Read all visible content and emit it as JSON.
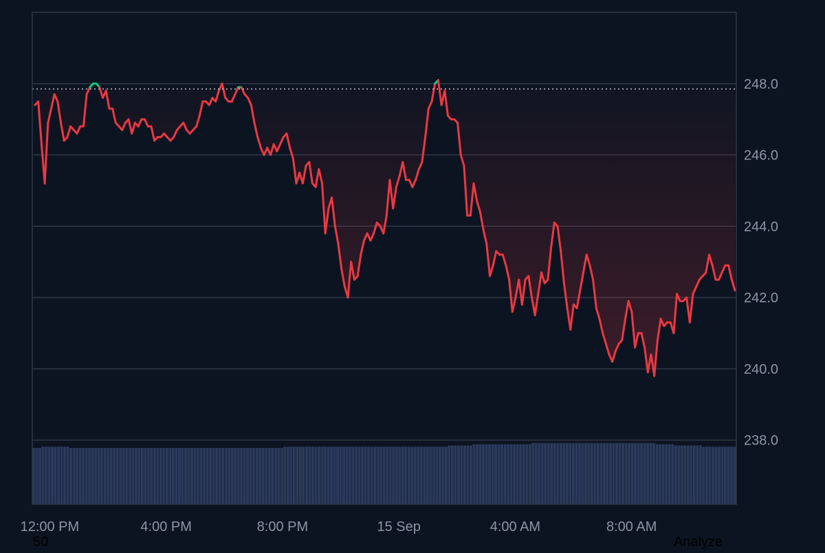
{
  "colors": {
    "background": "#0d1421",
    "line_down": "#ea3943",
    "line_up": "#16c784",
    "grid": "#2f3747",
    "axis_text": "#8c95a6",
    "volume": "#2c3a5c",
    "reference_line": "#c4cbd6"
  },
  "overlay": {
    "bottom_left": "50",
    "bottom_right": "Analyze"
  },
  "chart_data": {
    "type": "line",
    "title": "",
    "xlabel": "",
    "ylabel": "",
    "ylim": [
      236.2,
      250.0
    ],
    "y_ticks": [
      238.0,
      240.0,
      242.0,
      244.0,
      246.0,
      248.0
    ],
    "y_tick_labels": [
      "238.0",
      "240.0",
      "242.0",
      "244.0",
      "246.0",
      "248.0"
    ],
    "x_ticks": [
      {
        "label": "12:00 PM",
        "hours": 0.6
      },
      {
        "label": "4:00 PM",
        "hours": 4.6
      },
      {
        "label": "8:00 PM",
        "hours": 8.6
      },
      {
        "label": "15 Sep",
        "hours": 12.6
      },
      {
        "label": "4:00 AM",
        "hours": 16.6
      },
      {
        "label": "8:00 AM",
        "hours": 20.6
      }
    ],
    "x_range_hours": [
      0,
      24.2
    ],
    "reference_value": 247.85,
    "grid": true,
    "series": [
      {
        "values": [
          247.4,
          247.5,
          246.3,
          245.2,
          246.9,
          247.3,
          247.7,
          247.5,
          246.9,
          246.4,
          246.5,
          246.8,
          246.7,
          246.6,
          246.8,
          246.8,
          247.7,
          247.9,
          248.0,
          248.0,
          247.9,
          247.6,
          247.8,
          247.3,
          247.3,
          246.9,
          246.8,
          246.7,
          246.9,
          247.0,
          246.6,
          246.9,
          246.8,
          247.0,
          247.0,
          246.8,
          246.8,
          246.4,
          246.5,
          246.5,
          246.6,
          246.5,
          246.4,
          246.5,
          246.7,
          246.8,
          246.9,
          246.7,
          246.6,
          246.7,
          246.8,
          247.1,
          247.5,
          247.5,
          247.4,
          247.6,
          247.5,
          247.8,
          248.0,
          247.6,
          247.5,
          247.5,
          247.7,
          247.9,
          247.9,
          247.7,
          247.6,
          247.4,
          246.9,
          246.5,
          246.2,
          246.0,
          246.2,
          246.0,
          246.3,
          246.1,
          246.3,
          246.5,
          246.6,
          246.2,
          245.9,
          245.2,
          245.5,
          245.2,
          245.7,
          245.8,
          245.2,
          245.1,
          245.6,
          245.2,
          243.8,
          244.5,
          244.8,
          244.0,
          243.5,
          242.8,
          242.3,
          242.0,
          243.0,
          242.5,
          242.6,
          243.2,
          243.6,
          243.8,
          243.6,
          243.8,
          244.1,
          244.0,
          243.8,
          244.3,
          245.3,
          244.5,
          245.1,
          245.4,
          245.8,
          245.3,
          245.3,
          245.1,
          245.3,
          245.6,
          245.8,
          246.5,
          247.3,
          247.5,
          248.0,
          248.1,
          247.4,
          247.8,
          247.1,
          247.0,
          247.0,
          246.9,
          246.0,
          245.7,
          244.3,
          244.3,
          245.2,
          244.7,
          244.4,
          243.9,
          243.5,
          242.6,
          242.9,
          243.3,
          243.2,
          243.2,
          242.9,
          242.5,
          241.6,
          242.0,
          242.5,
          241.8,
          242.5,
          242.6,
          242.0,
          241.5,
          242.1,
          242.7,
          242.4,
          242.5,
          243.4,
          244.1,
          244.0,
          243.3,
          242.4,
          241.7,
          241.1,
          241.8,
          241.7,
          242.2,
          242.7,
          243.2,
          242.9,
          242.5,
          241.7,
          241.4,
          241.0,
          240.7,
          240.4,
          240.2,
          240.5,
          240.7,
          240.8,
          241.4,
          241.9,
          241.6,
          240.6,
          241.0,
          241.0,
          240.6,
          239.9,
          240.4,
          239.8,
          240.8,
          241.4,
          241.2,
          241.3,
          241.3,
          241.0,
          242.1,
          241.9,
          241.9,
          242.0,
          241.3,
          242.1,
          242.3,
          242.5,
          242.6,
          242.7,
          243.2,
          242.9,
          242.5,
          242.5,
          242.7,
          242.9,
          242.9,
          242.5,
          242.2
        ]
      }
    ],
    "volume": {
      "type": "bar",
      "values": [
        0.46,
        0.46,
        0.46,
        0.47,
        0.47,
        0.47,
        0.47,
        0.47,
        0.47,
        0.47,
        0.47,
        0.47,
        0.46,
        0.46,
        0.46,
        0.46,
        0.46,
        0.46,
        0.46,
        0.46,
        0.46,
        0.46,
        0.46,
        0.46,
        0.46,
        0.46,
        0.46,
        0.46,
        0.46,
        0.46,
        0.46,
        0.46,
        0.46,
        0.46,
        0.46,
        0.46,
        0.46,
        0.46,
        0.46,
        0.46,
        0.46,
        0.46,
        0.46,
        0.46,
        0.46,
        0.46,
        0.46,
        0.46,
        0.46,
        0.46,
        0.46,
        0.46,
        0.46,
        0.46,
        0.46,
        0.46,
        0.46,
        0.46,
        0.46,
        0.46,
        0.46,
        0.46,
        0.46,
        0.46,
        0.46,
        0.46,
        0.46,
        0.46,
        0.46,
        0.46,
        0.46,
        0.46,
        0.46,
        0.46,
        0.46,
        0.46,
        0.46,
        0.46,
        0.46,
        0.46,
        0.46,
        0.47,
        0.47,
        0.47,
        0.47,
        0.47,
        0.47,
        0.47,
        0.47,
        0.47,
        0.47,
        0.47,
        0.47,
        0.47,
        0.47,
        0.47,
        0.47,
        0.47,
        0.47,
        0.47,
        0.47,
        0.47,
        0.47,
        0.47,
        0.47,
        0.47,
        0.47,
        0.47,
        0.47,
        0.47,
        0.47,
        0.47,
        0.47,
        0.47,
        0.47,
        0.47,
        0.47,
        0.47,
        0.47,
        0.47,
        0.47,
        0.47,
        0.47,
        0.47,
        0.47,
        0.47,
        0.47,
        0.47,
        0.47,
        0.47,
        0.47,
        0.47,
        0.47,
        0.47,
        0.48,
        0.48,
        0.48,
        0.48,
        0.48,
        0.48,
        0.48,
        0.48,
        0.49,
        0.49,
        0.49,
        0.49,
        0.49,
        0.49,
        0.49,
        0.49,
        0.49,
        0.49,
        0.49,
        0.49,
        0.49,
        0.49,
        0.49,
        0.49,
        0.49,
        0.49,
        0.49,
        0.5,
        0.5,
        0.5,
        0.5,
        0.5,
        0.5,
        0.5,
        0.5,
        0.5,
        0.5,
        0.5,
        0.5,
        0.5,
        0.5,
        0.5,
        0.5,
        0.5,
        0.5,
        0.5,
        0.5,
        0.5,
        0.5,
        0.5,
        0.5,
        0.5,
        0.5,
        0.5,
        0.5,
        0.5,
        0.5,
        0.5,
        0.5,
        0.5,
        0.5,
        0.5,
        0.5,
        0.5,
        0.5,
        0.5,
        0.5,
        0.49,
        0.49,
        0.49,
        0.49,
        0.49,
        0.49,
        0.48,
        0.48,
        0.48,
        0.48,
        0.48,
        0.48,
        0.48,
        0.48,
        0.48,
        0.47,
        0.47,
        0.47,
        0.47,
        0.47,
        0.47,
        0.47,
        0.47,
        0.47,
        0.47,
        0.47
      ]
    }
  }
}
